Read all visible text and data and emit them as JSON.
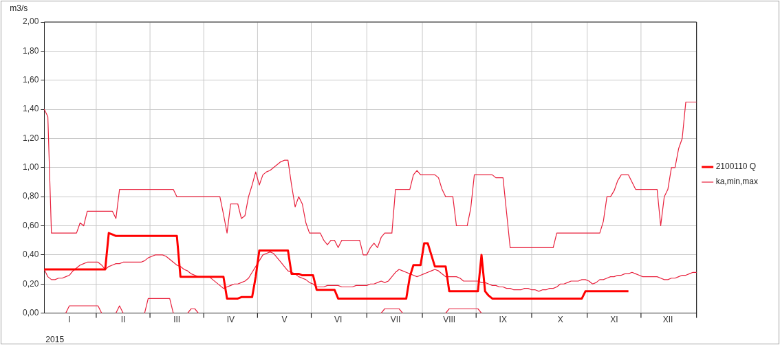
{
  "chart_data": {
    "type": "line",
    "ylabel": "m3/s",
    "annotations": [
      "2015"
    ],
    "legend": "right",
    "grid": true,
    "categories": [
      null,
      null,
      null,
      null,
      null,
      null,
      null,
      "I",
      null,
      null,
      null,
      null,
      null,
      null,
      null,
      null,
      null,
      null,
      null,
      null,
      null,
      null,
      "II",
      null,
      null,
      null,
      null,
      null,
      null,
      null,
      null,
      null,
      null,
      null,
      null,
      null,
      null,
      "III",
      null,
      null,
      null,
      null,
      null,
      null,
      null,
      null,
      null,
      null,
      null,
      null,
      null,
      null,
      "IV",
      null,
      null,
      null,
      null,
      null,
      null,
      null,
      null,
      null,
      null,
      null,
      null,
      null,
      null,
      "V",
      null,
      null,
      null,
      null,
      null,
      null,
      null,
      null,
      null,
      null,
      null,
      null,
      null,
      null,
      "VI",
      null,
      null,
      null,
      null,
      null,
      null,
      null,
      null,
      null,
      null,
      null,
      null,
      null,
      null,
      null,
      "VII",
      null,
      null,
      null,
      null,
      null,
      null,
      null,
      null,
      null,
      null,
      null,
      null,
      null,
      null,
      "VIII",
      null,
      null,
      null,
      null,
      null,
      null,
      null,
      null,
      null,
      null,
      null,
      null,
      null,
      null,
      "IX",
      null,
      null,
      null,
      null,
      null,
      null,
      null,
      null,
      null,
      null,
      null,
      null,
      null,
      null,
      null,
      "X",
      null,
      null,
      null,
      null,
      null,
      null,
      null,
      null,
      null,
      null,
      null,
      null,
      null,
      null,
      "XI",
      null,
      null,
      null,
      null,
      null,
      null,
      null,
      null,
      null,
      null,
      null,
      null,
      null,
      null,
      "XII",
      null,
      null,
      null,
      null,
      null,
      null,
      null,
      null
    ],
    "ylim": [
      0,
      2
    ],
    "yticks": [
      {
        "value": 0,
        "label": "0,00"
      },
      {
        "value": 0.2,
        "label": "0,20"
      },
      {
        "value": 0.4,
        "label": "0,40"
      },
      {
        "value": 0.6,
        "label": "0,60"
      },
      {
        "value": 0.8,
        "label": "0,80"
      },
      {
        "value": 1,
        "label": "1,00"
      },
      {
        "value": 1.2,
        "label": "1,20"
      },
      {
        "value": 1.4,
        "label": "1,40"
      },
      {
        "value": 1.6,
        "label": "1,60"
      },
      {
        "value": 1.8,
        "label": "1,80"
      },
      {
        "value": 2,
        "label": "2,00"
      }
    ],
    "series": [
      {
        "name": "2100110 Q",
        "color": "#ff0000",
        "values": [
          0.3,
          0.3,
          0.3,
          0.3,
          0.3,
          0.3,
          0.3,
          0.3,
          0.3,
          0.3,
          0.3,
          0.3,
          0.3,
          0.3,
          0.3,
          0.3,
          0.3,
          0.3,
          0.55,
          0.54,
          0.53,
          0.53,
          0.53,
          0.53,
          0.53,
          0.53,
          0.53,
          0.53,
          0.53,
          0.53,
          0.53,
          0.53,
          0.53,
          0.53,
          0.53,
          0.53,
          0.53,
          0.53,
          0.25,
          0.25,
          0.25,
          0.25,
          0.25,
          0.25,
          0.25,
          0.25,
          0.25,
          0.25,
          0.25,
          0.25,
          0.25,
          0.1,
          0.1,
          0.1,
          0.1,
          0.11,
          0.11,
          0.11,
          0.11,
          0.25,
          0.43,
          0.43,
          0.43,
          0.43,
          0.43,
          0.43,
          0.43,
          0.43,
          0.43,
          0.27,
          0.27,
          0.27,
          0.26,
          0.26,
          0.26,
          0.26,
          0.16,
          0.16,
          0.16,
          0.16,
          0.16,
          0.16,
          0.1,
          0.1,
          0.1,
          0.1,
          0.1,
          0.1,
          0.1,
          0.1,
          0.1,
          0.1,
          0.1,
          0.1,
          0.1,
          0.1,
          0.1,
          0.1,
          0.1,
          0.1,
          0.1,
          0.1,
          0.25,
          0.33,
          0.33,
          0.33,
          0.48,
          0.48,
          0.4,
          0.32,
          0.32,
          0.32,
          0.32,
          0.15,
          0.15,
          0.15,
          0.15,
          0.15,
          0.15,
          0.15,
          0.15,
          0.15,
          0.4,
          0.15,
          0.12,
          0.1,
          0.1,
          0.1,
          0.1,
          0.1,
          0.1,
          0.1,
          0.1,
          0.1,
          0.1,
          0.1,
          0.1,
          0.1,
          0.1,
          0.1,
          0.1,
          0.1,
          0.1,
          0.1,
          0.1,
          0.1,
          0.1,
          0.1,
          0.1,
          0.1,
          0.1,
          0.15,
          0.15,
          0.15,
          0.15,
          0.15,
          0.15,
          0.15,
          0.15,
          0.15,
          0.15,
          0.15,
          0.15,
          0.15,
          null,
          null,
          null,
          null,
          null,
          null,
          null,
          null,
          null,
          null,
          null,
          null,
          null,
          null,
          null,
          null,
          null,
          null,
          null
        ]
      },
      {
        "name": "ka,min,max",
        "color": "#e8203c",
        "values": [
          0.3,
          0.25,
          0.23,
          0.23,
          0.24,
          0.24,
          0.25,
          0.26,
          0.29,
          0.31,
          0.33,
          0.34,
          0.35,
          0.35,
          0.35,
          0.35,
          0.33,
          0.3,
          0.32,
          0.33,
          0.34,
          0.34,
          0.35,
          0.35,
          0.35,
          0.35,
          0.35,
          0.35,
          0.36,
          0.38,
          0.39,
          0.4,
          0.4,
          0.4,
          0.39,
          0.37,
          0.35,
          0.33,
          0.32,
          0.3,
          0.29,
          0.27,
          0.26,
          0.25,
          0.25,
          0.25,
          0.25,
          0.23,
          0.21,
          0.19,
          0.17,
          0.18,
          0.19,
          0.2,
          0.2,
          0.21,
          0.22,
          0.24,
          0.28,
          0.32,
          0.36,
          0.4,
          0.41,
          0.42,
          0.41,
          0.38,
          0.35,
          0.32,
          0.29,
          0.28,
          0.27,
          0.25,
          0.24,
          0.23,
          0.21,
          0.2,
          0.18,
          0.18,
          0.18,
          0.19,
          0.19,
          0.19,
          0.19,
          0.18,
          0.18,
          0.18,
          0.18,
          0.19,
          0.19,
          0.19,
          0.19,
          0.2,
          0.2,
          0.21,
          0.22,
          0.21,
          0.22,
          0.25,
          0.28,
          0.3,
          0.29,
          0.28,
          0.27,
          0.26,
          0.25,
          0.26,
          0.27,
          0.28,
          0.29,
          0.3,
          0.29,
          0.27,
          0.25,
          0.25,
          0.25,
          0.25,
          0.24,
          0.22,
          0.22,
          0.22,
          0.22,
          0.22,
          0.21,
          0.21,
          0.2,
          0.19,
          0.19,
          0.18,
          0.18,
          0.17,
          0.17,
          0.16,
          0.16,
          0.16,
          0.17,
          0.17,
          0.16,
          0.16,
          0.15,
          0.16,
          0.16,
          0.17,
          0.17,
          0.18,
          0.2,
          0.2,
          0.21,
          0.22,
          0.22,
          0.22,
          0.23,
          0.23,
          0.22,
          0.2,
          0.21,
          0.23,
          0.23,
          0.24,
          0.25,
          0.25,
          0.26,
          0.26,
          0.27,
          0.27,
          0.28,
          0.27,
          0.26,
          0.25,
          0.25,
          0.25,
          0.25,
          0.25,
          0.24,
          0.23,
          0.23,
          0.24,
          0.24,
          0.25,
          0.26,
          0.26,
          0.27,
          0.28,
          0.28
        ]
      },
      {
        "color": "#e8203c",
        "values": [
          1.4,
          1.35,
          0.55,
          0.55,
          0.55,
          0.55,
          0.55,
          0.55,
          0.55,
          0.55,
          0.62,
          0.6,
          0.7,
          0.7,
          0.7,
          0.7,
          0.7,
          0.7,
          0.7,
          0.7,
          0.65,
          0.85,
          0.85,
          0.85,
          0.85,
          0.85,
          0.85,
          0.85,
          0.85,
          0.85,
          0.85,
          0.85,
          0.85,
          0.85,
          0.85,
          0.85,
          0.85,
          0.8,
          0.8,
          0.8,
          0.8,
          0.8,
          0.8,
          0.8,
          0.8,
          0.8,
          0.8,
          0.8,
          0.8,
          0.8,
          0.68,
          0.55,
          0.75,
          0.75,
          0.75,
          0.65,
          0.67,
          0.8,
          0.88,
          0.97,
          0.88,
          0.95,
          0.97,
          0.98,
          1.0,
          1.02,
          1.04,
          1.05,
          1.05,
          0.88,
          0.73,
          0.8,
          0.75,
          0.62,
          0.55,
          0.55,
          0.55,
          0.55,
          0.5,
          0.47,
          0.5,
          0.5,
          0.45,
          0.5,
          0.5,
          0.5,
          0.5,
          0.5,
          0.5,
          0.4,
          0.4,
          0.45,
          0.48,
          0.45,
          0.52,
          0.55,
          0.55,
          0.55,
          0.85,
          0.85,
          0.85,
          0.85,
          0.85,
          0.95,
          0.98,
          0.95,
          0.95,
          0.95,
          0.95,
          0.95,
          0.93,
          0.85,
          0.8,
          0.8,
          0.8,
          0.6,
          0.6,
          0.6,
          0.6,
          0.72,
          0.95,
          0.95,
          0.95,
          0.95,
          0.95,
          0.95,
          0.93,
          0.93,
          0.93,
          0.69,
          0.45,
          0.45,
          0.45,
          0.45,
          0.45,
          0.45,
          0.45,
          0.45,
          0.45,
          0.45,
          0.45,
          0.45,
          0.45,
          0.55,
          0.55,
          0.55,
          0.55,
          0.55,
          0.55,
          0.55,
          0.55,
          0.55,
          0.55,
          0.55,
          0.55,
          0.55,
          0.63,
          0.8,
          0.8,
          0.84,
          0.91,
          0.95,
          0.95,
          0.95,
          0.9,
          0.85,
          0.85,
          0.85,
          0.85,
          0.85,
          0.85,
          0.85,
          0.6,
          0.8,
          0.85,
          1.0,
          1.0,
          1.13,
          1.2,
          1.45,
          1.45,
          1.45,
          1.45
        ]
      },
      {
        "color": "#e8203c",
        "values": [
          null,
          null,
          null,
          null,
          null,
          null,
          0,
          0.05,
          0.05,
          0.05,
          0.05,
          0.05,
          0.05,
          0.05,
          0.05,
          0.05,
          0,
          null,
          null,
          null,
          0,
          0.05,
          0,
          null,
          null,
          null,
          null,
          null,
          0,
          0.1,
          0.1,
          0.1,
          0.1,
          0.1,
          0.1,
          0.1,
          0,
          null,
          null,
          null,
          0,
          0.03,
          0.03,
          0,
          null,
          null,
          null,
          null,
          null,
          null,
          null,
          null,
          null,
          null,
          null,
          null,
          null,
          null,
          null,
          null,
          null,
          null,
          null,
          null,
          null,
          null,
          null,
          null,
          null,
          null,
          null,
          null,
          null,
          null,
          null,
          null,
          null,
          null,
          null,
          null,
          null,
          null,
          null,
          null,
          null,
          null,
          null,
          null,
          null,
          null,
          null,
          null,
          null,
          null,
          0,
          0.03,
          0.03,
          0.03,
          0.03,
          0.03,
          0,
          null,
          null,
          null,
          null,
          null,
          null,
          null,
          null,
          null,
          null,
          null,
          0,
          0.03,
          0.03,
          0.03,
          0.03,
          0.03,
          0.03,
          0.03,
          0.03,
          0.03,
          0,
          null,
          null,
          null,
          null,
          null,
          null,
          null,
          null,
          null,
          null,
          null,
          null,
          null,
          null,
          null,
          null,
          null,
          null,
          null,
          null,
          null,
          null,
          null,
          null,
          null,
          null,
          null,
          null,
          null,
          null,
          null,
          null,
          null,
          null,
          null,
          null,
          null,
          null,
          null,
          null,
          null,
          null,
          null,
          null,
          null,
          null,
          null,
          null,
          null,
          null,
          null,
          null,
          null,
          null,
          null,
          null,
          null,
          null,
          null,
          null
        ]
      }
    ]
  }
}
